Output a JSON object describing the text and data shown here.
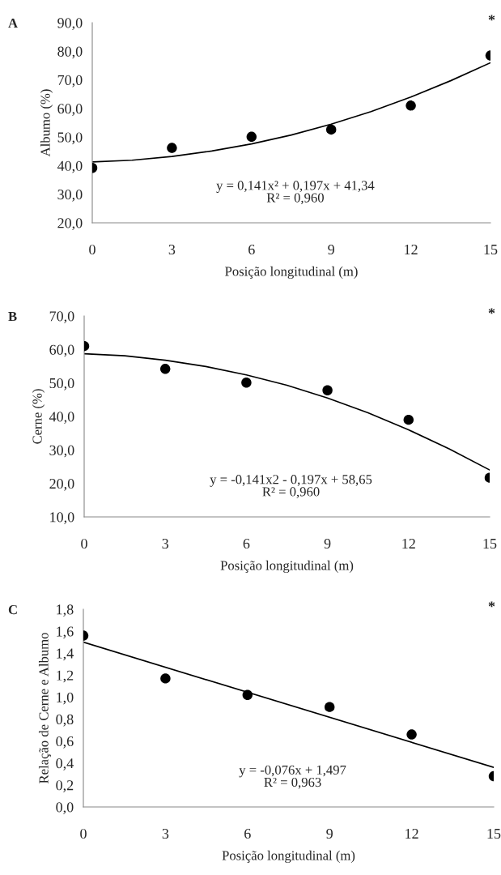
{
  "chart_data": [
    {
      "type": "scatter",
      "title": "A",
      "xlabel": "Posição longitudinal (m)",
      "ylabel": "Albumo (%)",
      "xlim": [
        0,
        15
      ],
      "xticks": [
        0,
        3,
        6,
        9,
        12,
        15
      ],
      "ylim": [
        20,
        90
      ],
      "yticks": [
        {
          "value": 20,
          "label": "20,0"
        },
        {
          "value": 30,
          "label": "30,0"
        },
        {
          "value": 40,
          "label": "40,0"
        },
        {
          "value": 50,
          "label": "50,0"
        },
        {
          "value": 60,
          "label": "60,0"
        },
        {
          "value": 70,
          "label": "70,0"
        },
        {
          "value": 80,
          "label": "80,0"
        },
        {
          "value": 90,
          "label": "90,0"
        }
      ],
      "grid": false,
      "series": [
        {
          "marker": "circle",
          "color": "#000000",
          "x": [
            0,
            3,
            6,
            9,
            12,
            15
          ],
          "values": [
            39.2,
            46.2,
            50.1,
            52.6,
            61.0,
            78.5
          ]
        },
        {
          "type": "line",
          "color": "#000000",
          "x": [
            0,
            1.5,
            3,
            4.5,
            6,
            7.5,
            9,
            10.5,
            12,
            13.5,
            15
          ],
          "values": [
            41.3,
            41.9,
            43.2,
            45.1,
            47.6,
            50.7,
            54.5,
            58.9,
            64.0,
            69.7,
            76.0
          ]
        }
      ],
      "annotations": [
        "*",
        "y = 0,141x² + 0,197x + 41,34\nR² = 0,960"
      ]
    },
    {
      "type": "scatter",
      "title": "B",
      "xlabel": "Posição longitudinal (m)",
      "ylabel": "Cerne (%)",
      "xlim": [
        0,
        15
      ],
      "xticks": [
        0,
        3,
        6,
        9,
        12,
        15
      ],
      "ylim": [
        10,
        70
      ],
      "yticks": [
        {
          "value": 10,
          "label": "10,0"
        },
        {
          "value": 20,
          "label": "20,0"
        },
        {
          "value": 30,
          "label": "30,0"
        },
        {
          "value": 40,
          "label": "40,0"
        },
        {
          "value": 50,
          "label": "50,0"
        },
        {
          "value": 60,
          "label": "60,0"
        },
        {
          "value": 70,
          "label": "70,0"
        }
      ],
      "grid": false,
      "series": [
        {
          "marker": "circle",
          "color": "#000000",
          "x": [
            0,
            3,
            6,
            9,
            12,
            15
          ],
          "values": [
            61.0,
            54.2,
            50.1,
            47.8,
            39.0,
            21.7
          ]
        },
        {
          "type": "line",
          "color": "#000000",
          "x": [
            0,
            1.5,
            3,
            4.5,
            6,
            7.5,
            9,
            10.5,
            12,
            13.5,
            15
          ],
          "values": [
            58.7,
            58.1,
            56.8,
            54.9,
            52.4,
            49.3,
            45.5,
            41.1,
            36.0,
            30.3,
            24.0
          ]
        }
      ],
      "annotations": [
        "*",
        "y = -0,141x2 - 0,197x + 58,65\nR² = 0,960"
      ]
    },
    {
      "type": "scatter",
      "title": "C",
      "xlabel": "Posição longitudinal (m)",
      "ylabel": "Relação de Cerne e Albumo",
      "xlim": [
        0,
        15
      ],
      "xticks": [
        0,
        3,
        6,
        9,
        12,
        15
      ],
      "ylim": [
        0,
        1.8
      ],
      "yticks": [
        {
          "value": 0,
          "label": "0,0"
        },
        {
          "value": 0.2,
          "label": "0,2"
        },
        {
          "value": 0.4,
          "label": "0,4"
        },
        {
          "value": 0.6,
          "label": "0,6"
        },
        {
          "value": 0.8,
          "label": "0,8"
        },
        {
          "value": 1.0,
          "label": "1,0"
        },
        {
          "value": 1.2,
          "label": "1,2"
        },
        {
          "value": 1.4,
          "label": "1,4"
        },
        {
          "value": 1.6,
          "label": "1,6"
        },
        {
          "value": 1.8,
          "label": "1,8"
        }
      ],
      "grid": false,
      "series": [
        {
          "marker": "circle",
          "color": "#000000",
          "x": [
            0,
            3,
            6,
            9,
            12,
            15
          ],
          "values": [
            1.56,
            1.17,
            1.02,
            0.91,
            0.66,
            0.28
          ]
        },
        {
          "type": "line",
          "color": "#000000",
          "x": [
            0,
            15
          ],
          "values": [
            1.5,
            0.36
          ]
        }
      ],
      "annotations": [
        "*",
        "y = -0,076x + 1,497\nR² = 0,963"
      ]
    }
  ]
}
